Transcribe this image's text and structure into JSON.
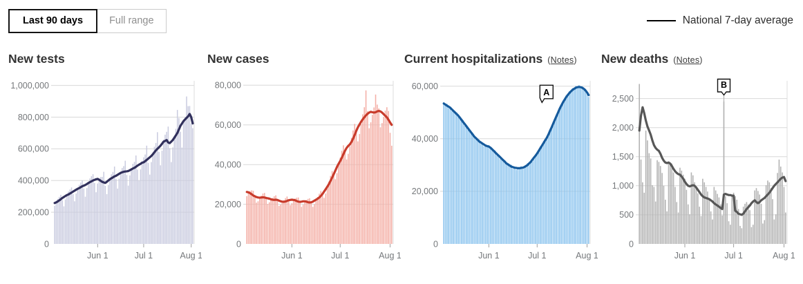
{
  "toolbar": {
    "range_toggle": [
      {
        "label": "Last 90 days",
        "selected": true
      },
      {
        "label": "Full range",
        "selected": false
      }
    ]
  },
  "legend": {
    "label": "National 7-day average",
    "position": "top-right",
    "line_color": "#000000"
  },
  "chart_data": [
    {
      "type": "bar",
      "title": "New tests",
      "bar_color": "#c9cbdf",
      "line_color": "#31305c",
      "ylim": [
        0,
        1020000
      ],
      "grid": true,
      "y_ticks": [
        {
          "value": 0,
          "label": "0"
        },
        {
          "value": 200000,
          "label": "200,000"
        },
        {
          "value": 400000,
          "label": "400,000"
        },
        {
          "value": 600000,
          "label": "600,000"
        },
        {
          "value": 800000,
          "label": "800,000"
        },
        {
          "value": 1000000,
          "label": "1,000,000"
        }
      ],
      "x_ticks": [
        {
          "day": 28,
          "label": "Jun 1"
        },
        {
          "day": 58,
          "label": "Jul 1"
        },
        {
          "day": 89,
          "label": "Aug 1"
        }
      ],
      "series": [
        {
          "name": "daily",
          "values": [
            240000,
            267000,
            284000,
            297000,
            310000,
            276000,
            237000,
            281000,
            314000,
            331000,
            343000,
            356000,
            314000,
            269000,
            318000,
            355000,
            373000,
            387000,
            400000,
            350000,
            298000,
            352000,
            392000,
            413000,
            427000,
            440000,
            384000,
            326000,
            381000,
            413000,
            422000,
            423000,
            455000,
            366000,
            314000,
            372000,
            416000,
            439000,
            454000,
            488000,
            409000,
            349000,
            411000,
            457000,
            479000,
            491000,
            525000,
            435000,
            368000,
            432000,
            479000,
            505000,
            518000,
            558000,
            469000,
            400000,
            470000,
            522000,
            546000,
            564000,
            620000,
            511000,
            437000,
            516000,
            577000,
            613000,
            637000,
            705000,
            580000,
            496000,
            588000,
            658000,
            689000,
            707000,
            740000,
            604000,
            516000,
            609000,
            683000,
            726000,
            845000,
            794000,
            708000,
            608000,
            770000,
            801000,
            930000,
            869000,
            870000,
            760000,
            730000
          ]
        },
        {
          "name": "National 7-day average",
          "values": [
            258000,
            262000,
            268000,
            275000,
            282000,
            290000,
            296000,
            302000,
            308000,
            312000,
            318000,
            324000,
            330000,
            336000,
            342000,
            348000,
            352000,
            358000,
            364000,
            368000,
            372000,
            378000,
            384000,
            390000,
            395000,
            400000,
            404000,
            408000,
            410000,
            405000,
            398000,
            392000,
            388000,
            385000,
            392000,
            400000,
            408000,
            414000,
            420000,
            426000,
            430000,
            436000,
            442000,
            448000,
            452000,
            455000,
            457000,
            458000,
            460000,
            465000,
            470000,
            476000,
            480000,
            487000,
            494000,
            500000,
            505000,
            512000,
            515000,
            522000,
            530000,
            538000,
            546000,
            555000,
            566000,
            578000,
            590000,
            600000,
            610000,
            620000,
            632000,
            645000,
            650000,
            655000,
            640000,
            636000,
            645000,
            655000,
            670000,
            685000,
            700000,
            722000,
            745000,
            760000,
            775000,
            785000,
            795000,
            805000,
            820000,
            800000,
            760000
          ]
        }
      ]
    },
    {
      "type": "bar",
      "title": "New cases",
      "bar_color": "#f4b0a7",
      "line_color": "#c83b2b",
      "ylim": [
        0,
        81500
      ],
      "grid": true,
      "y_ticks": [
        {
          "value": 0,
          "label": "0"
        },
        {
          "value": 20000,
          "label": "20,000"
        },
        {
          "value": 40000,
          "label": "40,000"
        },
        {
          "value": 60000,
          "label": "60,000"
        },
        {
          "value": 80000,
          "label": "80,000"
        }
      ],
      "x_ticks": [
        {
          "day": 28,
          "label": "Jun 1"
        },
        {
          "day": 58,
          "label": "Jul 1"
        },
        {
          "day": 89,
          "label": "Aug 1"
        }
      ],
      "series": [
        {
          "name": "daily",
          "values": [
            24100,
            25500,
            26600,
            27000,
            26800,
            24500,
            20800,
            21500,
            22800,
            24300,
            25400,
            25700,
            23700,
            20200,
            21000,
            22100,
            23200,
            24000,
            24500,
            22600,
            19200,
            19800,
            20900,
            22000,
            23100,
            23900,
            22400,
            19500,
            20500,
            21800,
            22900,
            23300,
            23400,
            21600,
            18700,
            19800,
            21100,
            22200,
            22700,
            23000,
            21400,
            18700,
            20100,
            21900,
            23700,
            25300,
            26600,
            25700,
            23200,
            25400,
            28200,
            31400,
            34300,
            36700,
            35900,
            32600,
            35700,
            39600,
            43500,
            46900,
            49700,
            47900,
            42600,
            45400,
            49200,
            53500,
            57200,
            60500,
            58100,
            51700,
            55400,
            60400,
            65300,
            68900,
            77400,
            66900,
            58300,
            61300,
            65100,
            68800,
            75300,
            70200,
            68300,
            58800,
            60900,
            64100,
            67200,
            68900,
            67000,
            56000,
            49500
          ]
        },
        {
          "name": "National 7-day average",
          "values": [
            26200,
            26000,
            25600,
            25000,
            24400,
            24000,
            23600,
            23400,
            23300,
            23400,
            23500,
            23400,
            23200,
            23000,
            22800,
            22500,
            22300,
            22200,
            22300,
            22200,
            21800,
            21500,
            21300,
            21200,
            21400,
            21700,
            22000,
            22200,
            22300,
            22200,
            22000,
            21600,
            21300,
            21200,
            21300,
            21500,
            21500,
            21300,
            21000,
            20900,
            21000,
            21300,
            21800,
            22300,
            22800,
            23400,
            24200,
            25200,
            26400,
            27600,
            28800,
            30200,
            31800,
            33400,
            35200,
            37000,
            38800,
            40400,
            41800,
            43400,
            45200,
            47000,
            48400,
            49400,
            50200,
            51400,
            53000,
            55000,
            57000,
            58800,
            60200,
            61600,
            62800,
            63800,
            64800,
            65600,
            66200,
            66600,
            66400,
            66200,
            66400,
            66800,
            67000,
            66800,
            66200,
            65400,
            64600,
            63800,
            62600,
            61200,
            60000
          ]
        }
      ]
    },
    {
      "type": "bar",
      "title": "Current hospitalizations",
      "notes": {
        "open": "(",
        "text": "Notes",
        "close": ")"
      },
      "bar_color": "#8cc4ee",
      "line_color": "#155a9c",
      "ylim": [
        0,
        61500
      ],
      "grid": true,
      "y_ticks": [
        {
          "value": 0,
          "label": "0"
        },
        {
          "value": 20000,
          "label": "20,000"
        },
        {
          "value": 40000,
          "label": "40,000"
        },
        {
          "value": 60000,
          "label": "60,000"
        }
      ],
      "x_ticks": [
        {
          "day": 28,
          "label": "Jun 1"
        },
        {
          "day": 58,
          "label": "Jul 1"
        },
        {
          "day": 89,
          "label": "Aug 1"
        }
      ],
      "annotation": {
        "label": "A",
        "day": 61,
        "value": 53800,
        "pointer": "left",
        "drop_line": false
      },
      "series": [
        {
          "name": "daily",
          "values": [
            53900,
            52600,
            53300,
            51600,
            52100,
            50500,
            51000,
            49700,
            50000,
            48300,
            48500,
            46800,
            47100,
            45000,
            45100,
            43300,
            43600,
            42100,
            42200,
            40300,
            40700,
            39200,
            39700,
            38000,
            38500,
            37100,
            37800,
            36900,
            37600,
            36100,
            36500,
            35000,
            35500,
            33600,
            33900,
            32300,
            32800,
            31500,
            31800,
            30100,
            30700,
            29400,
            30100,
            28600,
            29300,
            28200,
            29200,
            28500,
            29500,
            28500,
            29700,
            29200,
            30700,
            30000,
            31500,
            31300,
            33200,
            33300,
            35000,
            34900,
            37100,
            37000,
            39100,
            38800,
            41000,
            40900,
            43700,
            44100,
            46400,
            46700,
            49200,
            49600,
            52100,
            52200,
            54500,
            54400,
            56500,
            56200,
            58100,
            57700,
            59300,
            58600,
            60100,
            59200,
            60400,
            59100,
            60000,
            58500,
            59000,
            57000,
            55900
          ]
        },
        {
          "name": "National 7-day average",
          "values": [
            53400,
            53000,
            52600,
            52200,
            51800,
            51200,
            50600,
            50000,
            49400,
            48800,
            48000,
            47200,
            46400,
            45600,
            44800,
            44000,
            43200,
            42400,
            41600,
            40800,
            40200,
            39600,
            39000,
            38600,
            38200,
            37800,
            37400,
            37200,
            37000,
            36600,
            36000,
            35400,
            34800,
            34200,
            33600,
            33000,
            32400,
            31800,
            31200,
            30600,
            30200,
            29800,
            29400,
            29200,
            29000,
            28900,
            28800,
            28800,
            28900,
            29000,
            29200,
            29600,
            30000,
            30600,
            31200,
            32000,
            32800,
            33600,
            34400,
            35400,
            36400,
            37400,
            38400,
            39400,
            40400,
            41600,
            43000,
            44400,
            45800,
            47200,
            48600,
            50000,
            51400,
            52600,
            53800,
            54800,
            55800,
            56600,
            57400,
            58000,
            58600,
            59000,
            59400,
            59600,
            59700,
            59600,
            59400,
            59000,
            58400,
            57600,
            56600
          ]
        }
      ]
    },
    {
      "type": "bar",
      "title": "New deaths",
      "notes": {
        "open": "(",
        "text": "Notes",
        "close": ")"
      },
      "bar_color": "#b4b4b4",
      "line_color": "#575757",
      "ylim": [
        0,
        2780
      ],
      "grid": true,
      "y_ticks": [
        {
          "value": 0,
          "label": "0"
        },
        {
          "value": 500,
          "label": "500"
        },
        {
          "value": 1000,
          "label": "1,000"
        },
        {
          "value": 1500,
          "label": "1,500"
        },
        {
          "value": 2000,
          "label": "2,000"
        },
        {
          "value": 2500,
          "label": "2,500"
        }
      ],
      "x_ticks": [
        {
          "day": 28,
          "label": "Jun 1"
        },
        {
          "day": 58,
          "label": "Jul 1"
        },
        {
          "day": 89,
          "label": "Aug 1"
        }
      ],
      "annotation": {
        "label": "B",
        "day": 52,
        "value": 2560,
        "pointer": "center",
        "drop_line": true
      },
      "series": [
        {
          "name": "daily",
          "values": [
            2750,
            1450,
            1060,
            880,
            1950,
            1780,
            1560,
            1470,
            1010,
            980,
            730,
            1440,
            1410,
            1340,
            1220,
            1000,
            760,
            560,
            1420,
            1400,
            1380,
            1230,
            980,
            720,
            540,
            1310,
            1260,
            1190,
            1120,
            930,
            680,
            510,
            1230,
            1180,
            1060,
            990,
            870,
            640,
            480,
            1120,
            1060,
            980,
            900,
            780,
            560,
            420,
            980,
            920,
            860,
            800,
            680,
            490,
            2450,
            820,
            700,
            390,
            330,
            850,
            880,
            820,
            760,
            600,
            310,
            270,
            640,
            690,
            720,
            680,
            580,
            290,
            330,
            920,
            960,
            910,
            850,
            690,
            350,
            410,
            1010,
            1090,
            1060,
            960,
            770,
            420,
            510,
            1220,
            1450,
            1330,
            1230,
            980,
            540
          ]
        },
        {
          "name": "National 7-day average",
          "values": [
            1950,
            2200,
            2350,
            2250,
            2120,
            2020,
            1950,
            1880,
            1780,
            1700,
            1650,
            1620,
            1600,
            1550,
            1480,
            1430,
            1400,
            1390,
            1400,
            1380,
            1340,
            1290,
            1250,
            1220,
            1200,
            1190,
            1160,
            1120,
            1070,
            1030,
            1000,
            990,
            1000,
            1010,
            1000,
            970,
            930,
            890,
            850,
            820,
            800,
            790,
            780,
            770,
            750,
            730,
            700,
            680,
            660,
            640,
            620,
            600,
            850,
            860,
            850,
            840,
            840,
            830,
            830,
            570,
            550,
            520,
            510,
            500,
            520,
            560,
            600,
            630,
            660,
            700,
            730,
            750,
            720,
            700,
            720,
            750,
            770,
            790,
            820,
            850,
            880,
            920,
            960,
            1000,
            1030,
            1060,
            1090,
            1120,
            1140,
            1150,
            1080
          ]
        }
      ]
    }
  ]
}
